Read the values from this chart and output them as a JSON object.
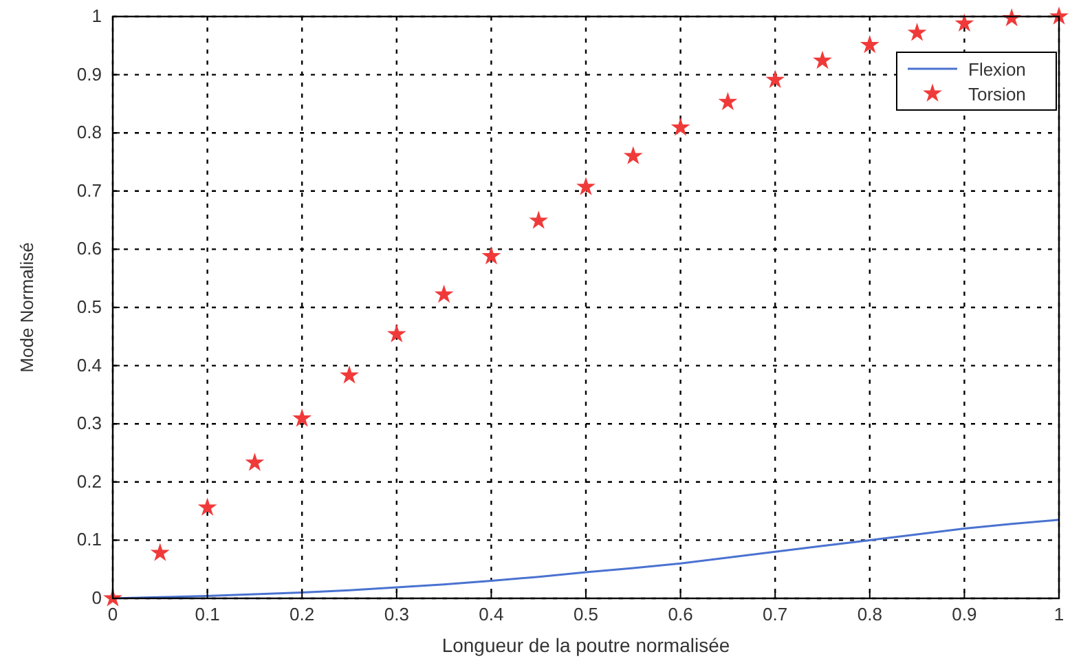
{
  "chart_data": {
    "type": "line",
    "xlabel": "Longueur de la poutre normalisée",
    "ylabel": "Mode Normalisé",
    "xlim": [
      0,
      1
    ],
    "xticks": [
      0,
      0.1,
      0.2,
      0.3,
      0.4,
      0.5,
      0.6,
      0.7,
      0.8,
      0.9,
      1
    ],
    "ylim": [
      0,
      1
    ],
    "yticks": [
      0,
      0.1,
      0.2,
      0.3,
      0.4,
      0.5,
      0.6,
      0.7,
      0.8,
      0.9,
      1
    ],
    "grid": true,
    "legend": "top right",
    "x": [
      0,
      0.05,
      0.1,
      0.15,
      0.2,
      0.25,
      0.3,
      0.35,
      0.4,
      0.45,
      0.5,
      0.55,
      0.6,
      0.65,
      0.7,
      0.75,
      0.8,
      0.85,
      0.9,
      0.95,
      1
    ],
    "series": [
      {
        "name": "Flexion",
        "color": "#4a72d0",
        "marker": "none",
        "values": [
          0,
          0.002,
          0.004,
          0.007,
          0.01,
          0.014,
          0.019,
          0.024,
          0.03,
          0.037,
          0.045,
          0.052,
          0.06,
          0.07,
          0.08,
          0.09,
          0.1,
          0.11,
          0.12,
          0.128,
          0.135
        ]
      },
      {
        "name": "Torsion",
        "type": "scatter",
        "color": "#f03a3a",
        "marker": "star",
        "values": [
          0,
          0.078,
          0.156,
          0.233,
          0.309,
          0.383,
          0.454,
          0.522,
          0.588,
          0.649,
          0.707,
          0.76,
          0.809,
          0.853,
          0.891,
          0.924,
          0.951,
          0.972,
          0.988,
          0.997,
          1
        ]
      }
    ]
  }
}
